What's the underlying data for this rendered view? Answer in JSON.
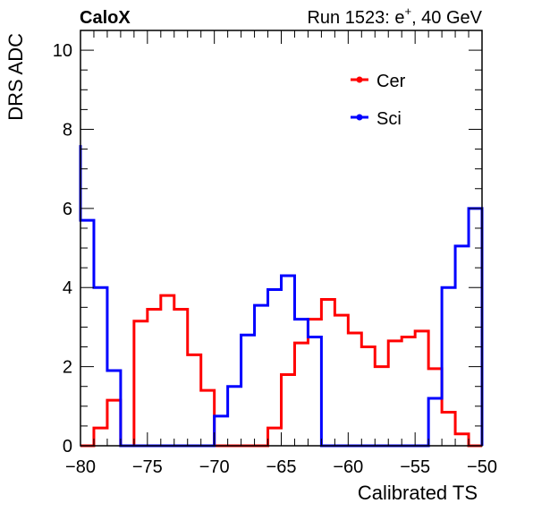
{
  "header": {
    "experiment": "CaloX",
    "run_prefix": "Run 1523: e",
    "run_superscript": "+",
    "run_suffix": ", 40 GeV"
  },
  "chart_data": {
    "type": "line",
    "style": "step-histogram",
    "xlabel": "Calibrated TS",
    "ylabel": "DRS ADC",
    "xlim": [
      -80,
      -50
    ],
    "ylim": [
      0,
      10.5
    ],
    "x_ticks": [
      -80,
      -75,
      -70,
      -65,
      -60,
      -55,
      -50
    ],
    "x_tick_labels": [
      "−80",
      "−75",
      "−70",
      "−65",
      "−60",
      "−55",
      "−50"
    ],
    "y_ticks": [
      0,
      2,
      4,
      6,
      8,
      10
    ],
    "y_tick_labels": [
      "0",
      "2",
      "4",
      "6",
      "8",
      "10"
    ],
    "bin_edges": [
      -80,
      -79,
      -78,
      -77,
      -76,
      -75,
      -74,
      -73,
      -72,
      -71,
      -70,
      -69,
      -68,
      -67,
      -66,
      -65,
      -64,
      -63,
      -62,
      -61,
      -60,
      -59,
      -58,
      -57,
      -56,
      -55,
      -54,
      -53,
      -52,
      -51,
      -50
    ],
    "legend_position": "top-right",
    "series": [
      {
        "name": "Cer",
        "color": "#ff0000",
        "values": [
          0,
          0.45,
          1.15,
          0,
          3.15,
          3.45,
          3.8,
          3.45,
          2.3,
          1.4,
          0,
          0,
          0,
          0,
          0.45,
          1.8,
          2.6,
          3.2,
          3.7,
          3.3,
          2.85,
          2.5,
          2.0,
          2.65,
          2.75,
          2.9,
          1.95,
          0.85,
          0.3,
          0
        ]
      },
      {
        "name": "Sci",
        "color": "#0000ff",
        "values": [
          5.7,
          4.0,
          1.9,
          0,
          0,
          0,
          0,
          0,
          0,
          0,
          0.75,
          1.5,
          2.8,
          3.55,
          3.95,
          4.3,
          3.2,
          2.75,
          0,
          0,
          0,
          0,
          0,
          0,
          0,
          0,
          1.2,
          4.0,
          5.05,
          6.0
        ],
        "edge_value": 7.6
      }
    ]
  }
}
